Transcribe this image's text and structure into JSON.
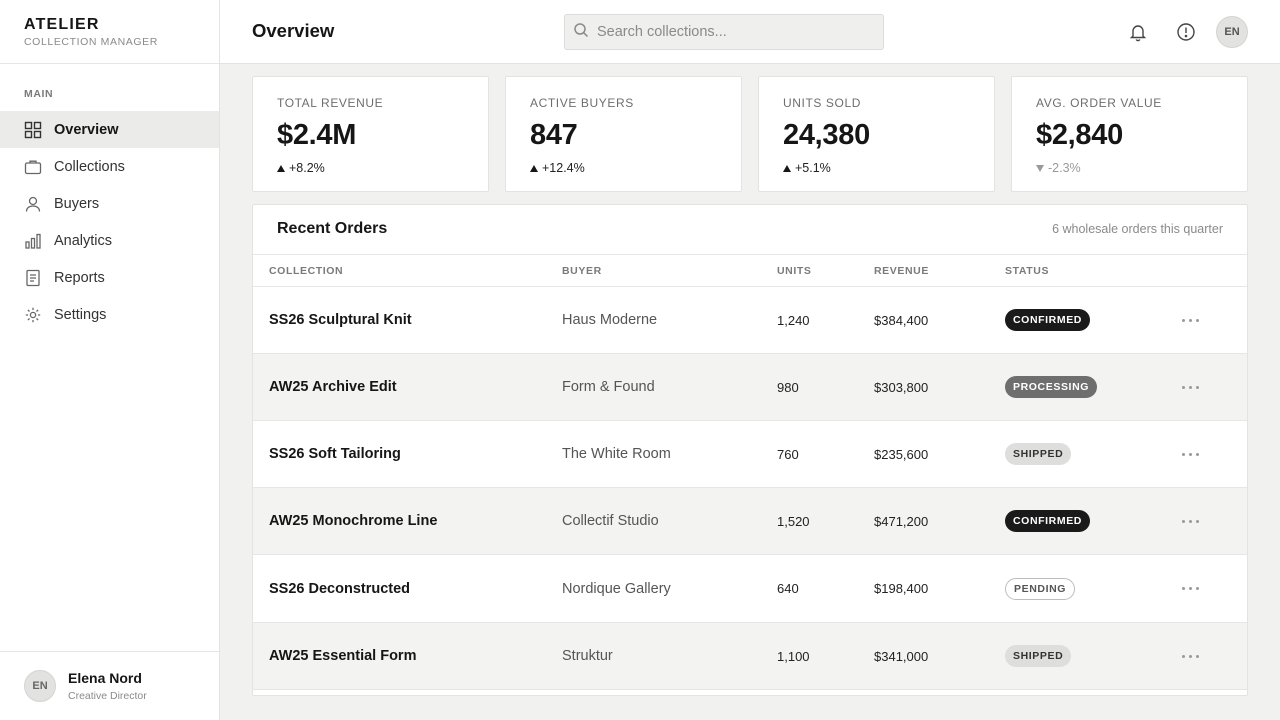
{
  "brand": {
    "name": "ATELIER",
    "subtitle": "COLLECTION MANAGER"
  },
  "sidebar": {
    "section_label": "MAIN",
    "items": [
      {
        "label": "Overview",
        "icon": "grid-icon",
        "active": true
      },
      {
        "label": "Collections",
        "icon": "briefcase-icon",
        "active": false
      },
      {
        "label": "Buyers",
        "icon": "user-icon",
        "active": false
      },
      {
        "label": "Analytics",
        "icon": "bar-chart-icon",
        "active": false
      },
      {
        "label": "Reports",
        "icon": "document-icon",
        "active": false
      },
      {
        "label": "Settings",
        "icon": "gear-icon",
        "active": false
      }
    ],
    "user": {
      "initials": "EN",
      "name": "Elena Nord",
      "role": "Creative Director"
    }
  },
  "header": {
    "title": "Overview",
    "search_placeholder": "Search collections...",
    "avatar_initials": "EN",
    "icons": [
      "bell-icon",
      "alert-circle-icon"
    ]
  },
  "kpis": [
    {
      "label": "TOTAL REVENUE",
      "value": "$2.4M",
      "delta": "+8.2%",
      "direction": "up"
    },
    {
      "label": "ACTIVE BUYERS",
      "value": "847",
      "delta": "+12.4%",
      "direction": "up"
    },
    {
      "label": "UNITS SOLD",
      "value": "24,380",
      "delta": "+5.1%",
      "direction": "up"
    },
    {
      "label": "AVG. ORDER VALUE",
      "value": "$2,840",
      "delta": "-2.3%",
      "direction": "down"
    }
  ],
  "orders": {
    "title": "Recent Orders",
    "subtitle": "6 wholesale orders this quarter",
    "columns": [
      "COLLECTION",
      "BUYER",
      "UNITS",
      "REVENUE",
      "STATUS"
    ],
    "rows": [
      {
        "collection": "SS26 Sculptural Knit",
        "buyer": "Haus Moderne",
        "units": "1,240",
        "revenue": "$384,400",
        "status": "CONFIRMED"
      },
      {
        "collection": "AW25 Archive Edit",
        "buyer": "Form & Found",
        "units": "980",
        "revenue": "$303,800",
        "status": "PROCESSING"
      },
      {
        "collection": "SS26 Soft Tailoring",
        "buyer": "The White Room",
        "units": "760",
        "revenue": "$235,600",
        "status": "SHIPPED"
      },
      {
        "collection": "AW25 Monochrome Line",
        "buyer": "Collectif Studio",
        "units": "1,520",
        "revenue": "$471,200",
        "status": "CONFIRMED"
      },
      {
        "collection": "SS26 Deconstructed",
        "buyer": "Nordique Gallery",
        "units": "640",
        "revenue": "$198,400",
        "status": "PENDING"
      },
      {
        "collection": "AW25 Essential Form",
        "buyer": "Struktur",
        "units": "1,100",
        "revenue": "$341,000",
        "status": "SHIPPED"
      }
    ]
  },
  "colors": {
    "accent": "#161616",
    "background": "#f1f1f0",
    "surface": "#ffffff",
    "muted": "#8a8a8a"
  }
}
